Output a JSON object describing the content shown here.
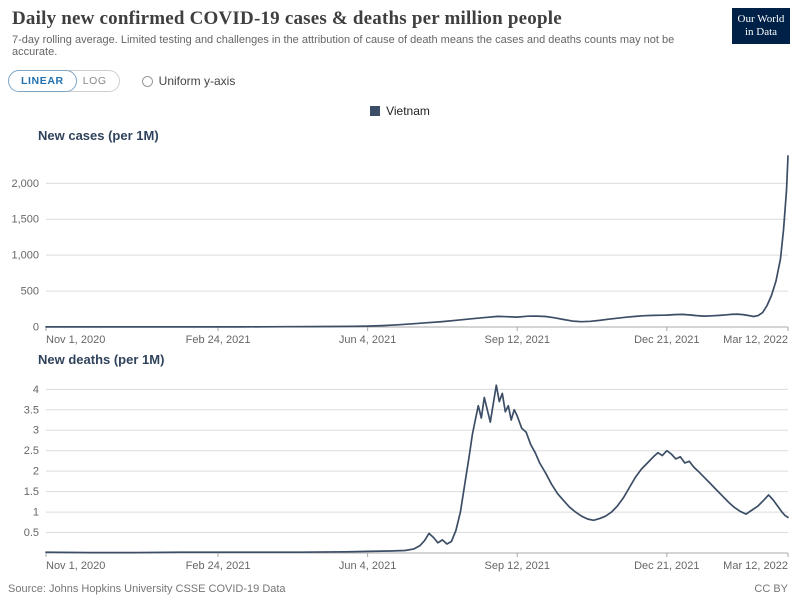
{
  "header": {
    "title": "Daily new confirmed COVID-19 cases & deaths per million people",
    "subtitle": "7-day rolling average. Limited testing and challenges in the attribution of cause of death means the cases and deaths counts may not be accurate.",
    "logo": {
      "line1": "Our World",
      "line2": "in Data",
      "bg": "#002147"
    }
  },
  "controls": {
    "linear": "LINEAR",
    "log": "LOG",
    "uniform_y_axis": "Uniform y-axis",
    "active_color": "#2271b1"
  },
  "legend": {
    "label": "Vietnam",
    "color": "#3C4E66"
  },
  "footer": {
    "source": "Source: Johns Hopkins University CSSE COVID-19 Data",
    "license": "CC BY"
  },
  "chart_data": [
    {
      "type": "line",
      "title": "New cases (per 1M)",
      "xlabel": "",
      "ylabel": "",
      "x_unit": "days since Nov 1, 2020",
      "x_range": [
        0,
        496
      ],
      "y_range": [
        0,
        2450
      ],
      "y_ticks": [
        0,
        500,
        1000,
        1500,
        2000
      ],
      "y_tick_labels": [
        "0",
        "500",
        "1,000",
        "1,500",
        "2,000"
      ],
      "x_ticks": [
        {
          "day": 0,
          "label": "Nov 1, 2020"
        },
        {
          "day": 115,
          "label": "Feb 24, 2021"
        },
        {
          "day": 215,
          "label": "Jun 4, 2021"
        },
        {
          "day": 315,
          "label": "Sep 12, 2021"
        },
        {
          "day": 415,
          "label": "Dec 21, 2021"
        },
        {
          "day": 496,
          "label": "Mar 12, 2022"
        }
      ],
      "grid": true,
      "legend_position": "top-center",
      "series": [
        {
          "name": "Vietnam",
          "color": "#3C4E66",
          "points": [
            [
              0,
              2
            ],
            [
              20,
              1.5
            ],
            [
              40,
              1
            ],
            [
              60,
              1
            ],
            [
              80,
              1.5
            ],
            [
              100,
              2
            ],
            [
              115,
              2
            ],
            [
              130,
              2
            ],
            [
              145,
              3
            ],
            [
              160,
              4
            ],
            [
              175,
              5
            ],
            [
              190,
              7
            ],
            [
              205,
              10
            ],
            [
              215,
              13
            ],
            [
              225,
              20
            ],
            [
              235,
              30
            ],
            [
              245,
              45
            ],
            [
              255,
              60
            ],
            [
              265,
              75
            ],
            [
              275,
              95
            ],
            [
              285,
              115
            ],
            [
              295,
              135
            ],
            [
              302,
              147
            ],
            [
              308,
              143
            ],
            [
              315,
              138
            ],
            [
              322,
              150
            ],
            [
              328,
              152
            ],
            [
              334,
              146
            ],
            [
              340,
              128
            ],
            [
              346,
              105
            ],
            [
              352,
              82
            ],
            [
              358,
              74
            ],
            [
              364,
              80
            ],
            [
              370,
              92
            ],
            [
              376,
              108
            ],
            [
              382,
              122
            ],
            [
              388,
              136
            ],
            [
              394,
              148
            ],
            [
              400,
              157
            ],
            [
              406,
              162
            ],
            [
              412,
              164
            ],
            [
              415,
              166
            ],
            [
              420,
              172
            ],
            [
              425,
              176
            ],
            [
              430,
              168
            ],
            [
              435,
              158
            ],
            [
              440,
              152
            ],
            [
              445,
              156
            ],
            [
              450,
              162
            ],
            [
              455,
              170
            ],
            [
              458,
              175
            ],
            [
              462,
              180
            ],
            [
              466,
              172
            ],
            [
              470,
              158
            ],
            [
              473,
              146
            ],
            [
              476,
              158
            ],
            [
              479,
              200
            ],
            [
              482,
              300
            ],
            [
              485,
              440
            ],
            [
              488,
              640
            ],
            [
              491,
              950
            ],
            [
              493,
              1350
            ],
            [
              495,
              1900
            ],
            [
              496,
              2380
            ]
          ]
        }
      ]
    },
    {
      "type": "line",
      "title": "New deaths (per 1M)",
      "xlabel": "",
      "ylabel": "",
      "x_unit": "days since Nov 1, 2020",
      "x_range": [
        0,
        496
      ],
      "y_range": [
        0,
        4.35
      ],
      "y_ticks": [
        0.5,
        1,
        1.5,
        2,
        2.5,
        3,
        3.5,
        4
      ],
      "y_tick_labels": [
        "0.5",
        "1",
        "1.5",
        "2",
        "2.5",
        "3",
        "3.5",
        "4"
      ],
      "x_ticks": [
        {
          "day": 0,
          "label": "Nov 1, 2020"
        },
        {
          "day": 115,
          "label": "Feb 24, 2021"
        },
        {
          "day": 215,
          "label": "Jun 4, 2021"
        },
        {
          "day": 315,
          "label": "Sep 12, 2021"
        },
        {
          "day": 415,
          "label": "Dec 21, 2021"
        },
        {
          "day": 496,
          "label": "Mar 12, 2022"
        }
      ],
      "grid": true,
      "legend_position": "top-center",
      "series": [
        {
          "name": "Vietnam",
          "color": "#3C4E66",
          "points": [
            [
              0,
              0.02
            ],
            [
              30,
              0.01
            ],
            [
              60,
              0.01
            ],
            [
              90,
              0.02
            ],
            [
              115,
              0.02
            ],
            [
              140,
              0.02
            ],
            [
              170,
              0.02
            ],
            [
              200,
              0.03
            ],
            [
              215,
              0.04
            ],
            [
              230,
              0.05
            ],
            [
              240,
              0.06
            ],
            [
              246,
              0.1
            ],
            [
              250,
              0.18
            ],
            [
              253,
              0.3
            ],
            [
              256,
              0.48
            ],
            [
              259,
              0.38
            ],
            [
              262,
              0.25
            ],
            [
              265,
              0.32
            ],
            [
              268,
              0.22
            ],
            [
              271,
              0.28
            ],
            [
              274,
              0.55
            ],
            [
              277,
              1.0
            ],
            [
              280,
              1.7
            ],
            [
              283,
              2.4
            ],
            [
              285,
              2.9
            ],
            [
              287,
              3.25
            ],
            [
              289,
              3.6
            ],
            [
              291,
              3.3
            ],
            [
              293,
              3.8
            ],
            [
              295,
              3.5
            ],
            [
              297,
              3.2
            ],
            [
              299,
              3.65
            ],
            [
              301,
              4.1
            ],
            [
              303,
              3.7
            ],
            [
              305,
              3.9
            ],
            [
              307,
              3.45
            ],
            [
              309,
              3.6
            ],
            [
              311,
              3.25
            ],
            [
              313,
              3.5
            ],
            [
              315,
              3.35
            ],
            [
              318,
              3.05
            ],
            [
              321,
              2.95
            ],
            [
              324,
              2.65
            ],
            [
              327,
              2.45
            ],
            [
              330,
              2.2
            ],
            [
              334,
              1.95
            ],
            [
              338,
              1.68
            ],
            [
              342,
              1.45
            ],
            [
              346,
              1.28
            ],
            [
              350,
              1.12
            ],
            [
              354,
              1.0
            ],
            [
              358,
              0.9
            ],
            [
              362,
              0.83
            ],
            [
              366,
              0.8
            ],
            [
              370,
              0.84
            ],
            [
              374,
              0.9
            ],
            [
              378,
              1.0
            ],
            [
              382,
              1.15
            ],
            [
              386,
              1.35
            ],
            [
              390,
              1.6
            ],
            [
              394,
              1.85
            ],
            [
              398,
              2.05
            ],
            [
              402,
              2.2
            ],
            [
              406,
              2.35
            ],
            [
              409,
              2.45
            ],
            [
              412,
              2.38
            ],
            [
              415,
              2.5
            ],
            [
              418,
              2.42
            ],
            [
              421,
              2.3
            ],
            [
              424,
              2.35
            ],
            [
              427,
              2.2
            ],
            [
              430,
              2.24
            ],
            [
              433,
              2.1
            ],
            [
              436,
              2.0
            ],
            [
              440,
              1.85
            ],
            [
              444,
              1.7
            ],
            [
              448,
              1.55
            ],
            [
              452,
              1.4
            ],
            [
              456,
              1.25
            ],
            [
              460,
              1.12
            ],
            [
              464,
              1.02
            ],
            [
              468,
              0.95
            ],
            [
              472,
              1.05
            ],
            [
              476,
              1.15
            ],
            [
              480,
              1.3
            ],
            [
              483,
              1.42
            ],
            [
              486,
              1.3
            ],
            [
              489,
              1.15
            ],
            [
              492,
              1.0
            ],
            [
              494,
              0.92
            ],
            [
              496,
              0.87
            ]
          ]
        }
      ]
    }
  ]
}
